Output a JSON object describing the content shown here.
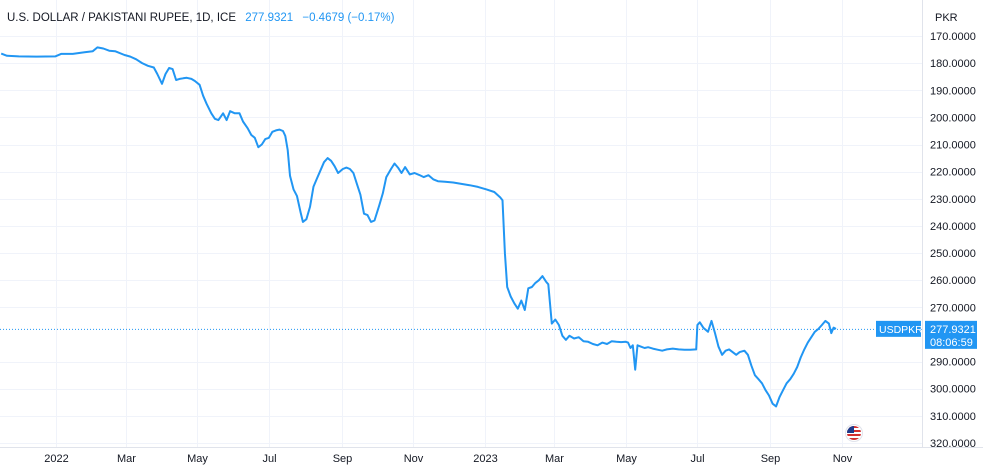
{
  "header": {
    "symbol": "U.S. DOLLAR / PAKISTANI RUPEE, 1D, ICE",
    "last": "277.9321",
    "change": "−0.4679 (−0.17%)"
  },
  "currency_button": "PKR",
  "price_tag": {
    "symbol": "USDPKR",
    "price": "277.9321",
    "countdown": "08:06:59"
  },
  "colors": {
    "line": "#2196f3",
    "tag": "#2196f3",
    "grid": "#f0f3fa",
    "axis_border": "#e0e3eb",
    "text": "#131722"
  },
  "flag_icon": "us-flag-icon",
  "chart_data": {
    "type": "line",
    "title": "U.S. DOLLAR / PAKISTANI RUPEE, 1D, ICE",
    "xlabel": "",
    "ylabel": "",
    "y_axis_inverted": true,
    "ylim": [
      320,
      170
    ],
    "y_ticks": [
      170,
      180,
      190,
      200,
      210,
      220,
      230,
      240,
      250,
      260,
      270,
      290,
      300,
      310,
      320
    ],
    "y_tick_labels": [
      "170.0000",
      "180.0000",
      "190.0000",
      "200.0000",
      "210.0000",
      "220.0000",
      "230.0000",
      "240.0000",
      "250.0000",
      "260.0000",
      "270.0000",
      "290.0000",
      "300.0000",
      "310.0000",
      "320.0000"
    ],
    "x_ticks": [
      "2022-01-01",
      "2022-03-01",
      "2022-05-01",
      "2022-07-01",
      "2022-09-01",
      "2022-11-01",
      "2023-01-01",
      "2023-03-01",
      "2023-05-01",
      "2023-07-01",
      "2023-09-01",
      "2023-11-01"
    ],
    "x_tick_labels": [
      "2022",
      "Mar",
      "May",
      "Jul",
      "Sep",
      "Nov",
      "2023",
      "Mar",
      "May",
      "Jul",
      "Sep",
      "Nov"
    ],
    "xlim": [
      "2021-11-14",
      "2023-11-25"
    ],
    "grid": true,
    "last_value": 277.9321,
    "series": [
      {
        "name": "USDPKR",
        "points": [
          [
            "2021-11-15",
            176.5
          ],
          [
            "2021-11-20",
            177.3
          ],
          [
            "2021-11-30",
            177.5
          ],
          [
            "2021-12-15",
            177.6
          ],
          [
            "2021-12-31",
            177.5
          ],
          [
            "2022-01-05",
            176.6
          ],
          [
            "2022-01-15",
            176.6
          ],
          [
            "2022-01-25",
            176.0
          ],
          [
            "2022-02-01",
            175.6
          ],
          [
            "2022-02-05",
            174.2
          ],
          [
            "2022-02-10",
            174.6
          ],
          [
            "2022-02-15",
            175.4
          ],
          [
            "2022-02-20",
            175.6
          ],
          [
            "2022-02-28",
            177.0
          ],
          [
            "2022-03-05",
            177.6
          ],
          [
            "2022-03-10",
            178.6
          ],
          [
            "2022-03-15",
            180.0
          ],
          [
            "2022-03-20",
            181.0
          ],
          [
            "2022-03-25",
            181.6
          ],
          [
            "2022-03-28",
            184.0
          ],
          [
            "2022-04-01",
            187.6
          ],
          [
            "2022-04-04",
            184.0
          ],
          [
            "2022-04-07",
            181.8
          ],
          [
            "2022-04-10",
            182.2
          ],
          [
            "2022-04-13",
            186.2
          ],
          [
            "2022-04-16",
            185.8
          ],
          [
            "2022-04-19",
            185.6
          ],
          [
            "2022-04-22",
            185.4
          ],
          [
            "2022-04-26",
            185.8
          ],
          [
            "2022-04-29",
            186.6
          ],
          [
            "2022-05-03",
            188.0
          ],
          [
            "2022-05-06",
            192.0
          ],
          [
            "2022-05-09",
            195.0
          ],
          [
            "2022-05-13",
            198.5
          ],
          [
            "2022-05-16",
            200.5
          ],
          [
            "2022-05-19",
            201.0
          ],
          [
            "2022-05-23",
            198.5
          ],
          [
            "2022-05-26",
            201.0
          ],
          [
            "2022-05-29",
            197.7
          ],
          [
            "2022-06-02",
            198.5
          ],
          [
            "2022-06-06",
            198.5
          ],
          [
            "2022-06-09",
            201.5
          ],
          [
            "2022-06-13",
            204.0
          ],
          [
            "2022-06-16",
            206.5
          ],
          [
            "2022-06-19",
            207.5
          ],
          [
            "2022-06-22",
            211.0
          ],
          [
            "2022-06-25",
            210.0
          ],
          [
            "2022-06-28",
            208.0
          ],
          [
            "2022-07-01",
            207.5
          ],
          [
            "2022-07-04",
            205.3
          ],
          [
            "2022-07-07",
            204.8
          ],
          [
            "2022-07-10",
            204.5
          ],
          [
            "2022-07-13",
            205.0
          ],
          [
            "2022-07-15",
            206.8
          ],
          [
            "2022-07-17",
            212.0
          ],
          [
            "2022-07-19",
            221.5
          ],
          [
            "2022-07-22",
            226.5
          ],
          [
            "2022-07-25",
            229.0
          ],
          [
            "2022-07-28",
            235.0
          ],
          [
            "2022-07-30",
            238.5
          ],
          [
            "2022-08-02",
            237.5
          ],
          [
            "2022-08-05",
            233.0
          ],
          [
            "2022-08-08",
            225.5
          ],
          [
            "2022-08-11",
            222.5
          ],
          [
            "2022-08-14",
            219.5
          ],
          [
            "2022-08-17",
            216.5
          ],
          [
            "2022-08-20",
            215.0
          ],
          [
            "2022-08-23",
            216.0
          ],
          [
            "2022-08-26",
            218.0
          ],
          [
            "2022-08-29",
            220.5
          ],
          [
            "2022-09-02",
            219.0
          ],
          [
            "2022-09-05",
            218.5
          ],
          [
            "2022-09-08",
            219.0
          ],
          [
            "2022-09-11",
            220.5
          ],
          [
            "2022-09-14",
            224.5
          ],
          [
            "2022-09-17",
            228.5
          ],
          [
            "2022-09-20",
            235.5
          ],
          [
            "2022-09-23",
            236.0
          ],
          [
            "2022-09-26",
            238.5
          ],
          [
            "2022-09-29",
            238.0
          ],
          [
            "2022-10-03",
            232.5
          ],
          [
            "2022-10-06",
            228.0
          ],
          [
            "2022-10-09",
            222.0
          ],
          [
            "2022-10-13",
            219.0
          ],
          [
            "2022-10-16",
            217.0
          ],
          [
            "2022-10-19",
            218.5
          ],
          [
            "2022-10-22",
            220.5
          ],
          [
            "2022-10-25",
            218.3
          ],
          [
            "2022-10-29",
            221.0
          ],
          [
            "2022-11-02",
            220.5
          ],
          [
            "2022-11-06",
            221.2
          ],
          [
            "2022-11-10",
            222.0
          ],
          [
            "2022-11-14",
            221.3
          ],
          [
            "2022-11-18",
            222.8
          ],
          [
            "2022-11-22",
            223.5
          ],
          [
            "2022-11-28",
            223.7
          ],
          [
            "2022-12-05",
            224.0
          ],
          [
            "2022-12-12",
            224.5
          ],
          [
            "2022-12-19",
            225.0
          ],
          [
            "2022-12-26",
            225.6
          ],
          [
            "2023-01-02",
            226.5
          ],
          [
            "2023-01-09",
            227.5
          ],
          [
            "2023-01-14",
            229.5
          ],
          [
            "2023-01-16",
            230.5
          ],
          [
            "2023-01-18",
            250.0
          ],
          [
            "2023-01-20",
            262.5
          ],
          [
            "2023-01-23",
            266.0
          ],
          [
            "2023-01-26",
            268.5
          ],
          [
            "2023-01-29",
            270.5
          ],
          [
            "2023-02-01",
            267.5
          ],
          [
            "2023-02-04",
            271.0
          ],
          [
            "2023-02-07",
            263.0
          ],
          [
            "2023-02-10",
            262.5
          ],
          [
            "2023-02-13",
            261.0
          ],
          [
            "2023-02-16",
            260.0
          ],
          [
            "2023-02-19",
            258.5
          ],
          [
            "2023-02-22",
            260.5
          ],
          [
            "2023-02-24",
            261.5
          ],
          [
            "2023-02-27",
            276.0
          ],
          [
            "2023-03-02",
            274.5
          ],
          [
            "2023-03-05",
            276.5
          ],
          [
            "2023-03-08",
            280.5
          ],
          [
            "2023-03-11",
            282.0
          ],
          [
            "2023-03-14",
            280.5
          ],
          [
            "2023-03-18",
            281.5
          ],
          [
            "2023-03-22",
            281.0
          ],
          [
            "2023-03-26",
            282.5
          ],
          [
            "2023-03-30",
            282.7
          ],
          [
            "2023-04-03",
            283.5
          ],
          [
            "2023-04-07",
            284.0
          ],
          [
            "2023-04-11",
            283.0
          ],
          [
            "2023-04-15",
            283.5
          ],
          [
            "2023-04-19",
            282.5
          ],
          [
            "2023-04-23",
            282.7
          ],
          [
            "2023-04-27",
            282.8
          ],
          [
            "2023-05-01",
            282.7
          ],
          [
            "2023-05-03",
            283.0
          ],
          [
            "2023-05-05",
            285.0
          ],
          [
            "2023-05-07",
            284.0
          ],
          [
            "2023-05-09",
            293.0
          ],
          [
            "2023-05-11",
            284.0
          ],
          [
            "2023-05-14",
            284.5
          ],
          [
            "2023-05-17",
            285.0
          ],
          [
            "2023-05-20",
            284.7
          ],
          [
            "2023-05-24",
            285.2
          ],
          [
            "2023-05-28",
            285.6
          ],
          [
            "2023-06-01",
            286.0
          ],
          [
            "2023-06-05",
            285.5
          ],
          [
            "2023-06-10",
            285.2
          ],
          [
            "2023-06-15",
            285.5
          ],
          [
            "2023-06-20",
            285.6
          ],
          [
            "2023-06-25",
            285.6
          ],
          [
            "2023-06-30",
            285.5
          ],
          [
            "2023-07-01",
            276.5
          ],
          [
            "2023-07-03",
            275.5
          ],
          [
            "2023-07-06",
            277.5
          ],
          [
            "2023-07-10",
            279.0
          ],
          [
            "2023-07-13",
            275.0
          ],
          [
            "2023-07-16",
            279.5
          ],
          [
            "2023-07-19",
            284.5
          ],
          [
            "2023-07-22",
            287.5
          ],
          [
            "2023-07-25",
            286.0
          ],
          [
            "2023-07-28",
            285.5
          ],
          [
            "2023-07-31",
            286.5
          ],
          [
            "2023-08-03",
            287.5
          ],
          [
            "2023-08-06",
            286.5
          ],
          [
            "2023-08-10",
            286.0
          ],
          [
            "2023-08-13",
            287.5
          ],
          [
            "2023-08-16",
            291.5
          ],
          [
            "2023-08-19",
            295.0
          ],
          [
            "2023-08-22",
            296.5
          ],
          [
            "2023-08-25",
            298.0
          ],
          [
            "2023-08-28",
            300.5
          ],
          [
            "2023-08-31",
            302.5
          ],
          [
            "2023-09-03",
            305.5
          ],
          [
            "2023-09-06",
            306.5
          ],
          [
            "2023-09-09",
            303.0
          ],
          [
            "2023-09-12",
            300.5
          ],
          [
            "2023-09-15",
            298.0
          ],
          [
            "2023-09-18",
            296.5
          ],
          [
            "2023-09-21",
            294.5
          ],
          [
            "2023-09-24",
            292.0
          ],
          [
            "2023-09-27",
            288.5
          ],
          [
            "2023-09-30",
            285.5
          ],
          [
            "2023-10-03",
            283.0
          ],
          [
            "2023-10-06",
            281.0
          ],
          [
            "2023-10-09",
            279.0
          ],
          [
            "2023-10-12",
            278.0
          ],
          [
            "2023-10-15",
            276.5
          ],
          [
            "2023-10-18",
            275.0
          ],
          [
            "2023-10-21",
            276.0
          ],
          [
            "2023-10-23",
            279.5
          ],
          [
            "2023-10-25",
            277.5
          ],
          [
            "2023-10-27",
            277.9321
          ]
        ]
      }
    ]
  }
}
